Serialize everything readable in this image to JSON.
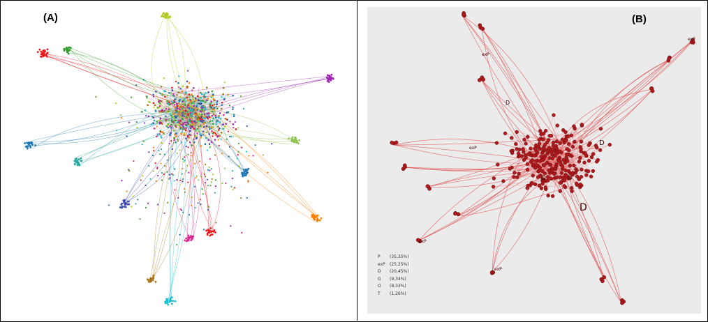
{
  "panels": {
    "a": {
      "label": "(A)"
    },
    "b": {
      "label": "(B)"
    }
  },
  "legend": [
    {
      "key": "P",
      "value": "(35,35%)"
    },
    {
      "key": "exP",
      "value": "(25,25%)"
    },
    {
      "key": "D",
      "value": "(20,45%)"
    },
    {
      "key": "G",
      "value": "(9,34%)"
    },
    {
      "key": "O",
      "value": "(8,33%)"
    },
    {
      "key": "T",
      "value": "(1,26%)"
    }
  ],
  "node_labels": [
    "D",
    "exP"
  ],
  "colors": {
    "network_b_node": "#b0191c",
    "network_b_edge": "#e05050",
    "panel_b_background": "#ebebeb",
    "palette_a": [
      "#e41a1c",
      "#1f78b4",
      "#33a02c",
      "#b2c91e",
      "#9c27b0",
      "#ff7f00",
      "#17becf",
      "#a6761d",
      "#d62790",
      "#3949ab",
      "#8bc34a",
      "#26a69a"
    ]
  }
}
